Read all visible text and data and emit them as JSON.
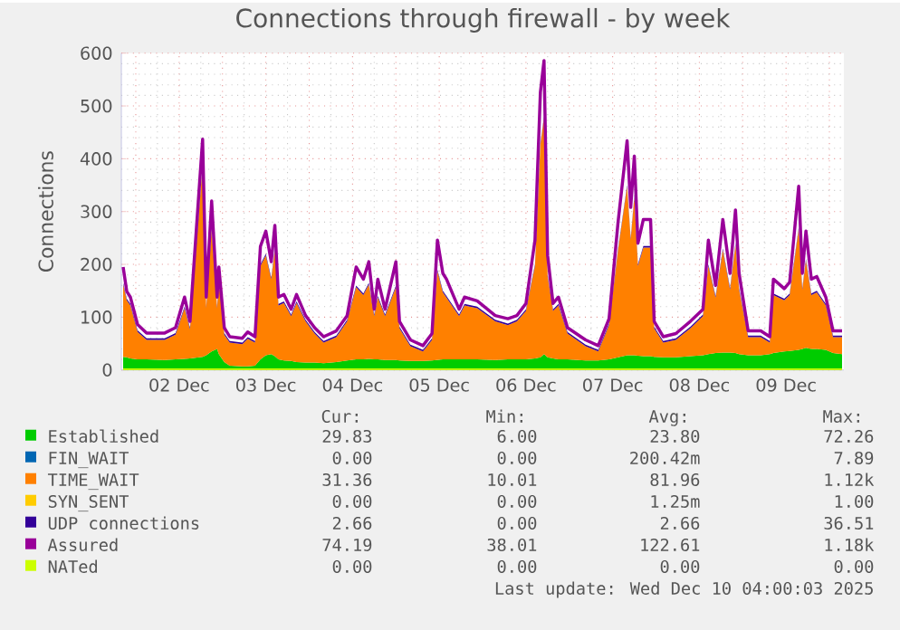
{
  "chart_data": {
    "type": "area",
    "stacked": true,
    "title": "Connections through firewall - by week",
    "ylabel": "Connections",
    "x": [
      "2025-12-01T20:30",
      "2025-12-01T21:30",
      "2025-12-01T22:30",
      "2025-12-02T00:30",
      "2025-12-02T03:00",
      "2025-12-02T08:00",
      "2025-12-02T11:00",
      "2025-12-02T13:30",
      "2025-12-02T15:00",
      "2025-12-02T18:30",
      "2025-12-02T19:30",
      "2025-12-02T21:00",
      "2025-12-02T22:30",
      "2025-12-02T23:00",
      "2025-12-03T00:30",
      "2025-12-03T02:00",
      "2025-12-03T05:30",
      "2025-12-03T07:00",
      "2025-12-03T09:00",
      "2025-12-03T10:30",
      "2025-12-03T12:00",
      "2025-12-03T13:30",
      "2025-12-03T14:30",
      "2025-12-03T15:30",
      "2025-12-03T17:00",
      "2025-12-03T19:00",
      "2025-12-03T20:30",
      "2025-12-03T23:00",
      "2025-12-04T01:30",
      "2025-12-04T04:00",
      "2025-12-04T07:30",
      "2025-12-04T10:30",
      "2025-12-04T13:00",
      "2025-12-04T15:00",
      "2025-12-04T16:30",
      "2025-12-04T18:00",
      "2025-12-04T19:00",
      "2025-12-04T21:00",
      "2025-12-05T00:00",
      "2025-12-05T01:00",
      "2025-12-05T04:00",
      "2025-12-05T07:30",
      "2025-12-05T10:00",
      "2025-12-05T11:30",
      "2025-12-05T13:00",
      "2025-12-05T14:00",
      "2025-12-05T17:30",
      "2025-12-05T19:00",
      "2025-12-05T22:30",
      "2025-12-06T03:30",
      "2025-12-06T07:00",
      "2025-12-06T09:30",
      "2025-12-06T12:00",
      "2025-12-06T14:30",
      "2025-12-06T16:00",
      "2025-12-06T17:00",
      "2025-12-06T18:00",
      "2025-12-06T19:30",
      "2025-12-06T21:00",
      "2025-12-06T23:30",
      "2025-12-07T04:30",
      "2025-12-07T08:00",
      "2025-12-07T11:00",
      "2025-12-07T13:30",
      "2025-12-07T16:00",
      "2025-12-07T17:00",
      "2025-12-07T18:00",
      "2025-12-07T19:00",
      "2025-12-07T20:30",
      "2025-12-07T22:30",
      "2025-12-07T23:30",
      "2025-12-08T02:00",
      "2025-12-08T05:30",
      "2025-12-08T09:30",
      "2025-12-08T13:00",
      "2025-12-08T14:30",
      "2025-12-08T16:30",
      "2025-12-08T18:30",
      "2025-12-08T20:30",
      "2025-12-08T22:00",
      "2025-12-08T23:00",
      "2025-12-09T01:30",
      "2025-12-09T05:00",
      "2025-12-09T07:30",
      "2025-12-09T08:30",
      "2025-12-09T11:30",
      "2025-12-09T13:00",
      "2025-12-09T15:30",
      "2025-12-09T16:30",
      "2025-12-09T17:30",
      "2025-12-09T19:00",
      "2025-12-09T20:30",
      "2025-12-09T23:00",
      "2025-12-10T01:00",
      "2025-12-10T03:30"
    ],
    "xlim": [
      "2025-12-01T20:00",
      "2025-12-10T04:00"
    ],
    "xticks": [
      {
        "value": "2025-12-02T00:00",
        "label": null
      },
      {
        "value": "2025-12-02T12:00",
        "label": "02 Dec"
      },
      {
        "value": "2025-12-03T00:00",
        "label": null
      },
      {
        "value": "2025-12-03T12:00",
        "label": "03 Dec"
      },
      {
        "value": "2025-12-04T00:00",
        "label": null
      },
      {
        "value": "2025-12-04T12:00",
        "label": "04 Dec"
      },
      {
        "value": "2025-12-05T00:00",
        "label": null
      },
      {
        "value": "2025-12-05T12:00",
        "label": "05 Dec"
      },
      {
        "value": "2025-12-06T00:00",
        "label": null
      },
      {
        "value": "2025-12-06T12:00",
        "label": "06 Dec"
      },
      {
        "value": "2025-12-07T00:00",
        "label": null
      },
      {
        "value": "2025-12-07T12:00",
        "label": "07 Dec"
      },
      {
        "value": "2025-12-08T00:00",
        "label": null
      },
      {
        "value": "2025-12-08T12:00",
        "label": "08 Dec"
      },
      {
        "value": "2025-12-09T00:00",
        "label": null
      },
      {
        "value": "2025-12-09T12:00",
        "label": "09 Dec"
      },
      {
        "value": "2025-12-10T00:00",
        "label": null
      }
    ],
    "ylim": [
      0,
      600
    ],
    "yticks": [
      0,
      100,
      200,
      300,
      400,
      500,
      600
    ],
    "grid": true,
    "legend": "bottom",
    "series": [
      {
        "name": "Established",
        "color": "#00cc00",
        "values": [
          25,
          24,
          22,
          20,
          20,
          19,
          20,
          21,
          22,
          25,
          28,
          35,
          40,
          30,
          15,
          8,
          7,
          7,
          8,
          20,
          28,
          30,
          26,
          20,
          18,
          17,
          15,
          14,
          14,
          13,
          15,
          18,
          20,
          20,
          21,
          20,
          20,
          19,
          19,
          18,
          17,
          17,
          18,
          19,
          20,
          20,
          20,
          20,
          20,
          19,
          20,
          20,
          20,
          22,
          24,
          30,
          24,
          22,
          20,
          20,
          18,
          18,
          20,
          24,
          28,
          28,
          28,
          27,
          26,
          26,
          25,
          24,
          24,
          26,
          28,
          30,
          32,
          33,
          33,
          32,
          30,
          28,
          28,
          30,
          32,
          35,
          36,
          38,
          40,
          42,
          40,
          40,
          38,
          32,
          30
        ]
      },
      {
        "name": "FIN_WAIT",
        "color": "#0066b3",
        "values": [
          null,
          null,
          null,
          null,
          null,
          null,
          null,
          null,
          null,
          null,
          null,
          null,
          null,
          null,
          null,
          null,
          null,
          null,
          null,
          null,
          null,
          null,
          null,
          null,
          null,
          null,
          null,
          null,
          null,
          null,
          null,
          null,
          null,
          null,
          null,
          null,
          null,
          null,
          null,
          null,
          null,
          null,
          null,
          null,
          null,
          null,
          null,
          null,
          null,
          null,
          null,
          null,
          null,
          null,
          null,
          null,
          null,
          null,
          null,
          null,
          null,
          null,
          null,
          null,
          null,
          null,
          null,
          null,
          null,
          null,
          null,
          null,
          null,
          null,
          null,
          null,
          null,
          null,
          null,
          null,
          null,
          null,
          null,
          null,
          null,
          null,
          null,
          null,
          null,
          null,
          null,
          null,
          null,
          null,
          null
        ]
      },
      {
        "name": "TIME_WAIT",
        "color": "#ff8000",
        "values": [
          137,
          108,
          100,
          52,
          37,
          38,
          47,
          96,
          55,
          362,
          89,
          232,
          77,
          137,
          52,
          44,
          42,
          52,
          44,
          177,
          189,
          142,
          201,
          102,
          109,
          85,
          112,
          78,
          55,
          39,
          47,
          74,
          137,
          122,
          141,
          82,
          117,
          83,
          138,
          61,
          28,
          18,
          39,
          168,
          127,
          117,
          82,
          102,
          97,
          73,
          65,
          72,
          92,
          175,
          403,
          447,
          153,
          90,
          102,
          49,
          27,
          17,
          65,
          203,
          319,
          219,
          299,
          170,
          206,
          206,
          54,
          28,
          33,
          53,
          74,
          167,
          105,
          194,
          119,
          205,
          122,
          34,
          34,
          22,
          110,
          97,
          106,
          229,
          112,
          165,
          102,
          107,
          84,
          30,
          32
        ]
      },
      {
        "name": "SYN_SENT",
        "color": "#ffcc00",
        "values": [
          null,
          null,
          null,
          null,
          null,
          null,
          null,
          null,
          null,
          null,
          null,
          null,
          null,
          null,
          null,
          null,
          null,
          null,
          null,
          null,
          null,
          null,
          null,
          null,
          null,
          null,
          null,
          null,
          null,
          null,
          null,
          null,
          null,
          null,
          null,
          null,
          null,
          null,
          null,
          null,
          null,
          null,
          null,
          null,
          null,
          null,
          null,
          null,
          null,
          null,
          null,
          null,
          null,
          null,
          null,
          null,
          null,
          null,
          null,
          null,
          null,
          null,
          null,
          null,
          null,
          null,
          null,
          null,
          null,
          null,
          null,
          null,
          null,
          null,
          null,
          null,
          null,
          null,
          null,
          null,
          null,
          null,
          null,
          null,
          null,
          null,
          null,
          null,
          null,
          null,
          null,
          null,
          null,
          null,
          null
        ]
      },
      {
        "name": "UDP connections",
        "color": "#330099",
        "values": [
          3,
          3,
          3,
          3,
          3,
          3,
          3,
          3,
          3,
          3,
          3,
          3,
          3,
          3,
          3,
          3,
          3,
          3,
          3,
          3,
          3,
          3,
          3,
          3,
          3,
          3,
          3,
          3,
          3,
          3,
          3,
          3,
          3,
          3,
          3,
          3,
          3,
          3,
          3,
          3,
          3,
          3,
          3,
          3,
          3,
          3,
          3,
          3,
          3,
          3,
          3,
          3,
          3,
          3,
          3,
          3,
          3,
          3,
          3,
          3,
          3,
          3,
          3,
          3,
          3,
          3,
          3,
          3,
          3,
          3,
          3,
          3,
          3,
          3,
          3,
          3,
          3,
          3,
          3,
          3,
          3,
          3,
          3,
          3,
          3,
          3,
          3,
          3,
          3,
          3,
          3,
          3,
          3,
          3,
          3
        ]
      },
      {
        "name": "Assured",
        "type": "line",
        "color": "#990099",
        "values": [
          195,
          149,
          138,
          86,
          70,
          70,
          80,
          138,
          92,
          437,
          138,
          320,
          138,
          195,
          80,
          63,
          60,
          72,
          63,
          234,
          263,
          205,
          274,
          138,
          143,
          115,
          143,
          103,
          80,
          63,
          74,
          103,
          195,
          172,
          205,
          115,
          172,
          115,
          205,
          92,
          57,
          46,
          69,
          246,
          183,
          172,
          115,
          138,
          131,
          103,
          97,
          103,
          126,
          246,
          526,
          586,
          217,
          126,
          138,
          80,
          57,
          46,
          97,
          280,
          434,
          308,
          405,
          240,
          285,
          285,
          92,
          63,
          69,
          92,
          115,
          246,
          160,
          285,
          183,
          303,
          183,
          74,
          74,
          63,
          172,
          154,
          166,
          348,
          183,
          263,
          172,
          177,
          138,
          74,
          74
        ]
      },
      {
        "name": "NATed",
        "type": "line",
        "color": "#ccff00",
        "values": [
          0,
          0,
          0,
          0,
          0,
          0,
          0,
          0,
          0,
          0,
          0,
          0,
          0,
          0,
          0,
          0,
          0,
          0,
          0,
          0,
          0,
          0,
          0,
          0,
          0,
          0,
          0,
          0,
          0,
          0,
          0,
          0,
          0,
          0,
          0,
          0,
          0,
          0,
          0,
          0,
          0,
          0,
          0,
          0,
          0,
          0,
          0,
          0,
          0,
          0,
          0,
          0,
          0,
          0,
          0,
          0,
          0,
          0,
          0,
          0,
          0,
          0,
          0,
          0,
          0,
          0,
          0,
          0,
          0,
          0,
          0,
          0,
          0,
          0,
          0,
          0,
          0,
          0,
          0,
          0,
          0,
          0,
          0,
          0,
          0,
          0,
          0,
          0,
          0,
          0,
          0,
          0,
          0,
          0,
          0
        ]
      }
    ],
    "annotations": [
      "Cur:",
      "Min:",
      "Avg:",
      "Max:",
      "29.83",
      "6.00",
      "23.80",
      "72.26",
      "0.00",
      "0.00",
      "200.42m",
      "7.89",
      "31.36",
      "10.01",
      "81.96",
      "1.12k",
      "0.00",
      "0.00",
      "1.25m",
      "1.00",
      "2.66",
      "0.00",
      "2.66",
      "36.51",
      "74.19",
      "38.01",
      "122.61",
      "1.18k",
      "0.00",
      "0.00",
      "0.00",
      "0.00",
      "Last update: Wed Dec 10 04:00:03 2025"
    ]
  }
}
